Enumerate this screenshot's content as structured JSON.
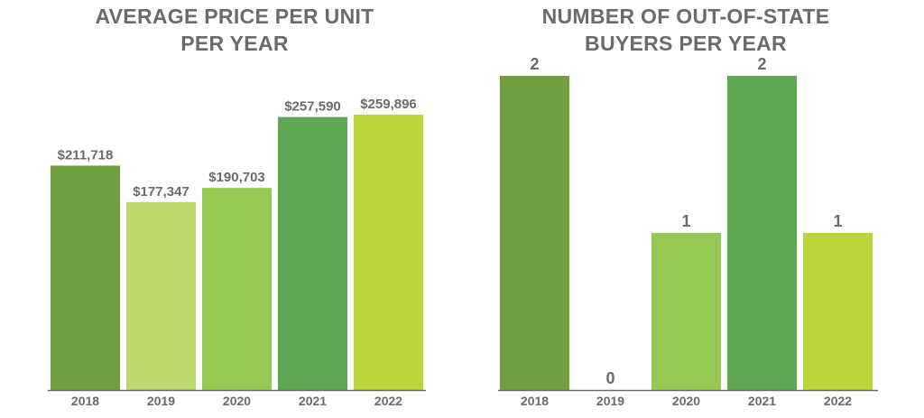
{
  "chart_data": [
    {
      "type": "bar",
      "title_lines": [
        "AVERAGE PRICE PER UNIT",
        "PER YEAR"
      ],
      "categories": [
        "2018",
        "2019",
        "2020",
        "2021",
        "2022"
      ],
      "values": [
        211718,
        177347,
        190703,
        257590,
        259896
      ],
      "value_labels": [
        "$211,718",
        "$177,347",
        "$190,703",
        "$257,590",
        "$259,896"
      ],
      "colors": [
        "#719e3f",
        "#bcd970",
        "#96c851",
        "#5fa653",
        "#bad639"
      ],
      "ylim": [
        0,
        460000
      ],
      "grid": false,
      "legend": "none"
    },
    {
      "type": "bar",
      "title_lines": [
        "NUMBER OF OUT-OF-STATE",
        "BUYERS PER YEAR"
      ],
      "categories": [
        "2018",
        "2019",
        "2020",
        "2021",
        "2022"
      ],
      "values": [
        2,
        0,
        1,
        2,
        1
      ],
      "value_labels": [
        "2",
        "0",
        "1",
        "2",
        "1"
      ],
      "colors": [
        "#719e3f",
        "#bcd970",
        "#96c851",
        "#5fa653",
        "#bad639"
      ],
      "ylim": [
        0,
        2
      ],
      "grid": false,
      "legend": "none"
    }
  ]
}
